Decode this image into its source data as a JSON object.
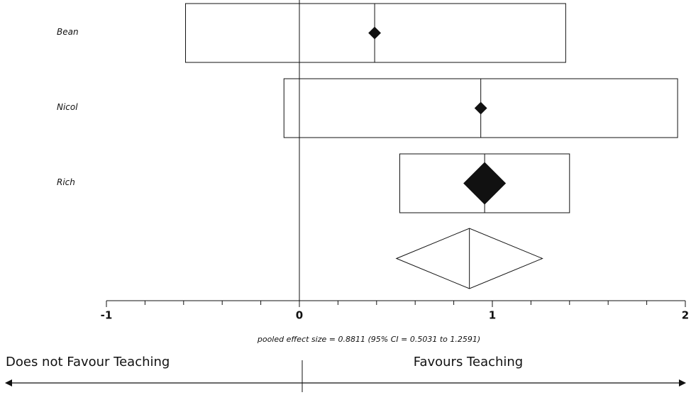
{
  "chart_data": {
    "type": "forest",
    "studies": [
      {
        "name": "Bean",
        "effect": 0.39,
        "ci_low": -0.59,
        "ci_high": 1.38,
        "weight": 7.5
      },
      {
        "name": "Nicol",
        "effect": 0.94,
        "ci_low": -0.08,
        "ci_high": 1.96,
        "weight": 7.5
      },
      {
        "name": "Rich",
        "effect": 0.96,
        "ci_low": 0.52,
        "ci_high": 1.4,
        "weight": 85
      }
    ],
    "pooled": {
      "effect": 0.8811,
      "ci_low": 0.5031,
      "ci_high": 1.2591
    },
    "pooled_label": "pooled effect size = 0.8811 (95% CI = 0.5031 to 1.2591)",
    "xlim": [
      -1,
      2
    ],
    "xticks": [
      -1,
      0,
      1,
      2
    ],
    "xminorticks": [
      -0.8,
      -0.6,
      -0.4,
      -0.2,
      0.2,
      0.4,
      0.6,
      0.8,
      1.2,
      1.4,
      1.6,
      1.8
    ],
    "left_label": "Does not Favour Teaching",
    "right_label": "Favours Teaching"
  }
}
